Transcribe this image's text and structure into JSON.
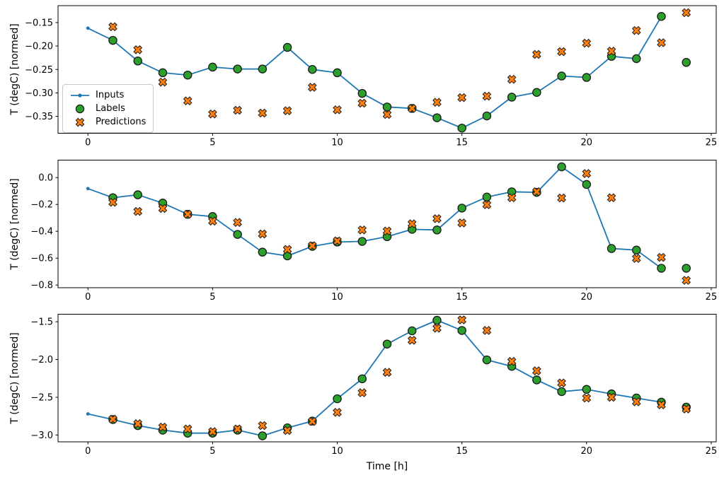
{
  "figure": {
    "xlabel": "Time [h]",
    "ylabel": "T (degC) [normed]",
    "colors": {
      "inputs": "#1f77b4",
      "labels": "#2ca02c",
      "predictions": "#ff7f0e",
      "edge": "#1a1a1a",
      "spine": "#000000",
      "legend_border": "#c9c9c9"
    },
    "legend": {
      "position": "upper-left-of-top-subplot",
      "items": [
        {
          "name": "Inputs"
        },
        {
          "name": "Labels"
        },
        {
          "name": "Predictions"
        }
      ]
    }
  },
  "chart_data": [
    {
      "type": "line+scatter",
      "ylabel": "T (degC) [normed]",
      "xlim": [
        -1.2,
        25.2
      ],
      "ylim": [
        -0.386,
        -0.114
      ],
      "grid": false,
      "xticks": {
        "values": [
          0,
          5,
          10,
          15,
          20,
          25
        ],
        "labels": [
          "0",
          "5",
          "10",
          "15",
          "20",
          "25"
        ]
      },
      "yticks": {
        "values": [
          -0.15,
          -0.2,
          -0.25,
          -0.3,
          -0.35
        ],
        "labels": [
          "−0.15",
          "−0.20",
          "−0.25",
          "−0.30",
          "−0.35"
        ]
      },
      "series": [
        {
          "name": "Inputs",
          "marker": "line-dot",
          "x": [
            0,
            1,
            2,
            3,
            4,
            5,
            6,
            7,
            8,
            9,
            10,
            11,
            12,
            13,
            14,
            15,
            16,
            17,
            18,
            19,
            20,
            21,
            22,
            23
          ],
          "y": [
            -0.162,
            -0.188,
            -0.232,
            -0.257,
            -0.262,
            -0.245,
            -0.249,
            -0.249,
            -0.203,
            -0.25,
            -0.257,
            -0.301,
            -0.33,
            -0.333,
            -0.353,
            -0.375,
            -0.349,
            -0.309,
            -0.299,
            -0.264,
            -0.267,
            -0.222,
            -0.227,
            -0.137
          ]
        },
        {
          "name": "Labels",
          "marker": "circle",
          "x": [
            1,
            2,
            3,
            4,
            5,
            6,
            7,
            8,
            9,
            10,
            11,
            12,
            13,
            14,
            15,
            16,
            17,
            18,
            19,
            20,
            21,
            22,
            23,
            24
          ],
          "y": [
            -0.188,
            -0.232,
            -0.257,
            -0.262,
            -0.245,
            -0.249,
            -0.249,
            -0.203,
            -0.25,
            -0.257,
            -0.301,
            -0.33,
            -0.333,
            -0.353,
            -0.375,
            -0.349,
            -0.309,
            -0.299,
            -0.264,
            -0.267,
            -0.222,
            -0.227,
            -0.137,
            -0.235
          ]
        },
        {
          "name": "Predictions",
          "marker": "X",
          "x": [
            1,
            2,
            3,
            4,
            5,
            6,
            7,
            8,
            9,
            10,
            11,
            12,
            13,
            14,
            15,
            16,
            17,
            18,
            19,
            20,
            21,
            22,
            23,
            24
          ],
          "y": [
            -0.159,
            -0.208,
            -0.277,
            -0.317,
            -0.345,
            -0.337,
            -0.343,
            -0.338,
            -0.288,
            -0.336,
            -0.322,
            -0.346,
            -0.333,
            -0.32,
            -0.31,
            -0.307,
            -0.271,
            -0.218,
            -0.212,
            -0.194,
            -0.211,
            -0.167,
            -0.193,
            -0.129
          ]
        }
      ]
    },
    {
      "type": "line+scatter",
      "ylabel": "T (degC) [normed]",
      "xlim": [
        -1.2,
        25.2
      ],
      "ylim": [
        -0.82,
        0.13
      ],
      "grid": false,
      "xticks": {
        "values": [
          0,
          5,
          10,
          15,
          20,
          25
        ],
        "labels": [
          "0",
          "5",
          "10",
          "15",
          "20",
          "25"
        ]
      },
      "yticks": {
        "values": [
          0.0,
          -0.2,
          -0.4,
          -0.6,
          -0.8
        ],
        "labels": [
          "0.0",
          "−0.2",
          "−0.4",
          "−0.6",
          "−0.8"
        ]
      },
      "series": [
        {
          "name": "Inputs",
          "marker": "line-dot",
          "x": [
            0,
            1,
            2,
            3,
            4,
            5,
            6,
            7,
            8,
            9,
            10,
            11,
            12,
            13,
            14,
            15,
            16,
            17,
            18,
            19,
            20,
            21,
            22,
            23
          ],
          "y": [
            -0.082,
            -0.15,
            -0.128,
            -0.19,
            -0.273,
            -0.29,
            -0.423,
            -0.555,
            -0.583,
            -0.512,
            -0.48,
            -0.475,
            -0.44,
            -0.385,
            -0.39,
            -0.227,
            -0.145,
            -0.106,
            -0.11,
            0.08,
            -0.051,
            -0.528,
            -0.54,
            -0.675
          ]
        },
        {
          "name": "Labels",
          "marker": "circle",
          "x": [
            1,
            2,
            3,
            4,
            5,
            6,
            7,
            8,
            9,
            10,
            11,
            12,
            13,
            14,
            15,
            16,
            17,
            18,
            19,
            20,
            21,
            22,
            23,
            24
          ],
          "y": [
            -0.15,
            -0.128,
            -0.19,
            -0.273,
            -0.29,
            -0.423,
            -0.555,
            -0.583,
            -0.512,
            -0.48,
            -0.475,
            -0.44,
            -0.385,
            -0.39,
            -0.227,
            -0.145,
            -0.106,
            -0.11,
            0.08,
            -0.051,
            -0.528,
            -0.54,
            -0.675,
            -0.675
          ]
        },
        {
          "name": "Predictions",
          "marker": "X",
          "x": [
            1,
            2,
            3,
            4,
            5,
            6,
            7,
            8,
            9,
            10,
            11,
            12,
            13,
            14,
            15,
            16,
            17,
            18,
            19,
            20,
            21,
            22,
            23,
            24
          ],
          "y": [
            -0.184,
            -0.252,
            -0.23,
            -0.273,
            -0.324,
            -0.334,
            -0.42,
            -0.535,
            -0.508,
            -0.472,
            -0.39,
            -0.398,
            -0.344,
            -0.306,
            -0.338,
            -0.202,
            -0.15,
            -0.105,
            -0.152,
            0.03,
            -0.15,
            -0.602,
            -0.594,
            -0.765
          ]
        }
      ]
    },
    {
      "type": "line+scatter",
      "ylabel": "T (degC) [normed]",
      "xlim": [
        -1.2,
        25.2
      ],
      "ylim": [
        -3.09,
        -1.4
      ],
      "grid": false,
      "xticks": {
        "values": [
          0,
          5,
          10,
          15,
          20,
          25
        ],
        "labels": [
          "0",
          "5",
          "10",
          "15",
          "20",
          "25"
        ]
      },
      "yticks": {
        "values": [
          -1.5,
          -2.0,
          -2.5,
          -3.0
        ],
        "labels": [
          "−1.5",
          "−2.0",
          "−2.5",
          "−3.0"
        ]
      },
      "series": [
        {
          "name": "Inputs",
          "marker": "line-dot",
          "x": [
            0,
            1,
            2,
            3,
            4,
            5,
            6,
            7,
            8,
            9,
            10,
            11,
            12,
            13,
            14,
            15,
            16,
            17,
            18,
            19,
            20,
            21,
            22,
            23
          ],
          "y": [
            -2.72,
            -2.795,
            -2.875,
            -2.935,
            -2.975,
            -2.975,
            -2.935,
            -3.01,
            -2.905,
            -2.815,
            -2.52,
            -2.255,
            -1.795,
            -1.62,
            -1.48,
            -1.615,
            -2.005,
            -2.09,
            -2.27,
            -2.425,
            -2.395,
            -2.455,
            -2.51,
            -2.565
          ]
        },
        {
          "name": "Labels",
          "marker": "circle",
          "x": [
            1,
            2,
            3,
            4,
            5,
            6,
            7,
            8,
            9,
            10,
            11,
            12,
            13,
            14,
            15,
            16,
            17,
            18,
            19,
            20,
            21,
            22,
            23,
            24
          ],
          "y": [
            -2.795,
            -2.875,
            -2.935,
            -2.975,
            -2.975,
            -2.935,
            -3.01,
            -2.905,
            -2.815,
            -2.52,
            -2.255,
            -1.795,
            -1.62,
            -1.48,
            -1.615,
            -2.005,
            -2.09,
            -2.27,
            -2.425,
            -2.395,
            -2.455,
            -2.51,
            -2.565,
            -2.63
          ]
        },
        {
          "name": "Predictions",
          "marker": "X",
          "x": [
            1,
            2,
            3,
            4,
            5,
            6,
            7,
            8,
            9,
            10,
            11,
            12,
            13,
            14,
            15,
            16,
            17,
            18,
            19,
            20,
            21,
            22,
            23,
            24
          ],
          "y": [
            -2.79,
            -2.85,
            -2.895,
            -2.92,
            -2.955,
            -2.92,
            -2.875,
            -2.94,
            -2.82,
            -2.7,
            -2.44,
            -2.17,
            -1.745,
            -1.585,
            -1.475,
            -1.615,
            -2.025,
            -2.15,
            -2.31,
            -2.51,
            -2.5,
            -2.56,
            -2.6,
            -2.655
          ]
        }
      ]
    }
  ]
}
